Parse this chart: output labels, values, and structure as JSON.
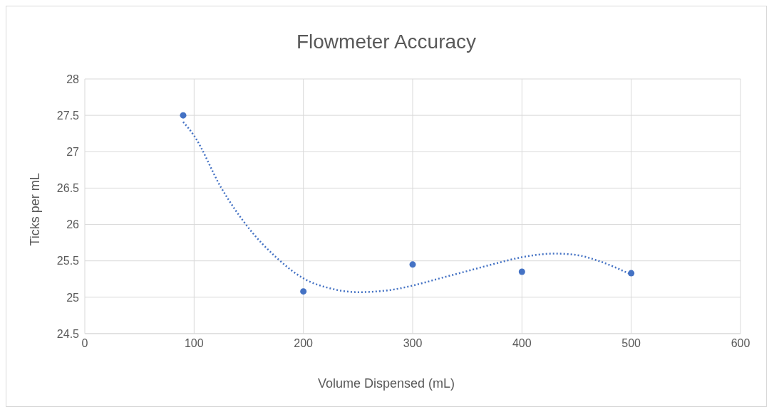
{
  "chart_data": {
    "type": "scatter",
    "title": "Flowmeter Accuracy",
    "xlabel": "Volume Dispensed (mL)",
    "ylabel": "Ticks per mL",
    "xlim": [
      0,
      600
    ],
    "xticks": [
      0,
      100,
      200,
      300,
      400,
      500,
      600
    ],
    "ylim": [
      24.5,
      28
    ],
    "yticks": [
      24.5,
      25,
      25.5,
      26,
      26.5,
      27,
      27.5,
      28
    ],
    "grid": true,
    "marker": "circle",
    "series": [
      {
        "type": "scatter",
        "color": "#4472c4",
        "x": [
          90,
          200,
          300,
          400,
          500
        ],
        "values": [
          27.5,
          25.08,
          25.45,
          25.35,
          25.33
        ]
      },
      {
        "type": "line",
        "color": "#4472c4",
        "line_style": "dotted",
        "marker": "none",
        "x": [
          90,
          100,
          125,
          150,
          175,
          200,
          225,
          250,
          275,
          300,
          325,
          350,
          375,
          400,
          430,
          450,
          470,
          500
        ],
        "values": [
          27.41,
          27.22,
          26.5,
          25.95,
          25.55,
          25.26,
          25.12,
          25.07,
          25.09,
          25.16,
          25.26,
          25.36,
          25.46,
          25.55,
          25.6,
          25.58,
          25.5,
          25.31
        ]
      }
    ]
  }
}
